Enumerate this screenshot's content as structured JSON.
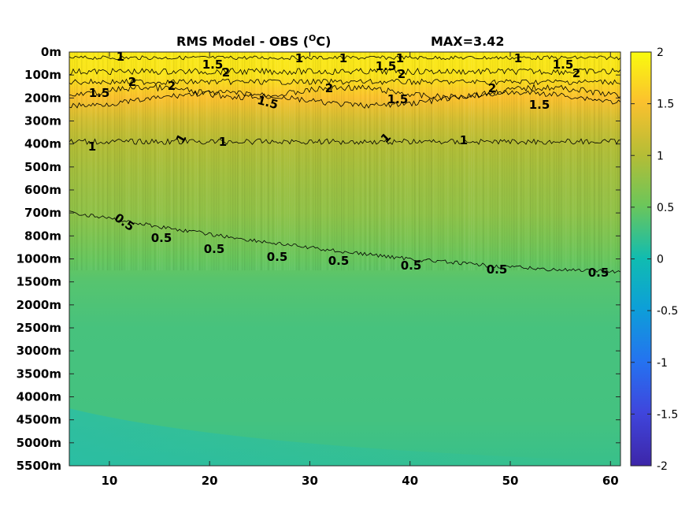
{
  "chart_data": {
    "type": "heatmap",
    "title": "RMS Model - OBS (",
    "title_superscript": "O",
    "title_unit": "C)",
    "max_label": "MAX=3.42",
    "x": {
      "ticks": [
        10,
        20,
        30,
        40,
        50,
        60
      ],
      "range": [
        6,
        61
      ]
    },
    "y": {
      "tick_labels": [
        "0m",
        "100m",
        "200m",
        "300m",
        "400m",
        "500m",
        "600m",
        "700m",
        "800m",
        "1000m",
        "1500m",
        "2000m",
        "2500m",
        "3000m",
        "3500m",
        "4000m",
        "4500m",
        "5000m",
        "5500m"
      ],
      "direction": "downward"
    },
    "colorbar": {
      "range": [
        -2,
        2
      ],
      "ticks": [
        "2",
        "1.5",
        "1",
        "0.5",
        "0",
        "-0.5",
        "-1",
        "-1.5",
        "-2"
      ],
      "colormap": "parula"
    },
    "contours": [
      {
        "level": 1.5,
        "labels": [
          "1.5",
          "1.5",
          "1.5",
          "1.5",
          "1.5",
          "1.5",
          "1.5"
        ]
      },
      {
        "level": 2,
        "labels": [
          "2",
          "2",
          "2",
          "2",
          "2",
          "2",
          "2"
        ]
      },
      {
        "level": 1,
        "labels": [
          "1",
          "1",
          "1",
          "1",
          "1",
          "1",
          "1",
          "1",
          "1",
          "1"
        ]
      },
      {
        "level": 0.5,
        "labels": [
          "0.5",
          "0.5",
          "0.5",
          "0.5",
          "0.5",
          "0.5",
          "0.5",
          "0.5"
        ]
      }
    ],
    "field_profile": [
      {
        "depth_index": 0,
        "value": 1.85
      },
      {
        "depth_index": 1,
        "value": 1.8
      },
      {
        "depth_index": 2,
        "value": 1.5
      },
      {
        "depth_index": 3,
        "value": 1.2
      },
      {
        "depth_index": 4,
        "value": 1.0
      },
      {
        "depth_index": 5,
        "value": 0.9
      },
      {
        "depth_index": 6,
        "value": 0.82
      },
      {
        "depth_index": 7,
        "value": 0.75
      },
      {
        "depth_index": 8,
        "value": 0.62
      },
      {
        "depth_index": 9,
        "value": 0.48
      },
      {
        "depth_index": 10,
        "value": 0.38
      },
      {
        "depth_index": 12,
        "value": 0.3
      },
      {
        "depth_index": 16,
        "value": 0.28
      },
      {
        "depth_index": 18,
        "value": 0.22
      }
    ]
  }
}
